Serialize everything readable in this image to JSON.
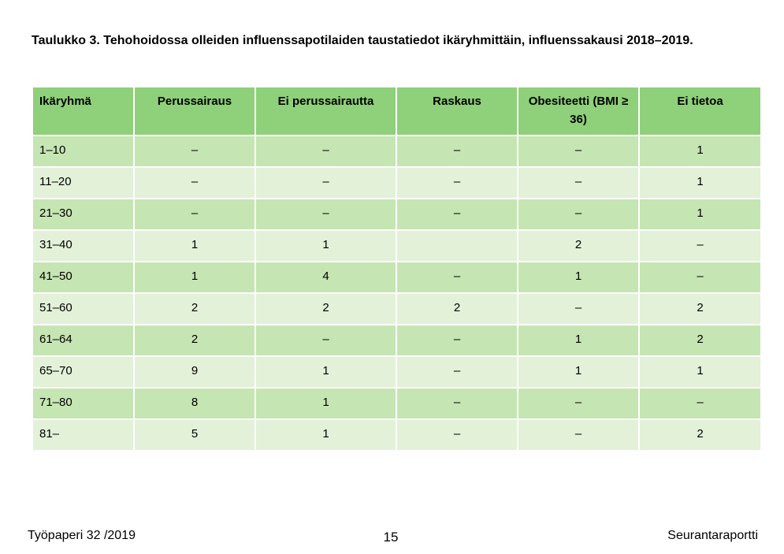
{
  "header": {
    "title": "Taulukko 3. Tehohoidossa olleiden influenssapotilaiden taustatiedot ikäryhmittäin, influenssakausi 2018–2019."
  },
  "table": {
    "columns": [
      "Ikäryhmä",
      "Perussairaus",
      "Ei perussairautta",
      "Raskaus",
      "Obesiteetti (BMI ≥ 36)",
      "Ei tietoa"
    ],
    "rows": [
      [
        "1–10",
        "–",
        "–",
        "–",
        "–",
        "1"
      ],
      [
        "11–20",
        "–",
        "–",
        "–",
        "–",
        "1"
      ],
      [
        "21–30",
        "–",
        "–",
        "–",
        "–",
        "1"
      ],
      [
        "31–40",
        "1",
        "1",
        "",
        "2",
        "–"
      ],
      [
        "41–50",
        "1",
        "4",
        "–",
        "1",
        "–"
      ],
      [
        "51–60",
        "2",
        "2",
        "2",
        "–",
        "2"
      ],
      [
        "61–64",
        "2",
        "–",
        "–",
        "1",
        "2"
      ],
      [
        "65–70",
        "9",
        "1",
        "–",
        "1",
        "1"
      ],
      [
        "71–80",
        "8",
        "1",
        "–",
        "–",
        "–"
      ],
      [
        "81–",
        "5",
        "1",
        "–",
        "–",
        "2"
      ]
    ]
  },
  "footer": {
    "left": "Työpaperi 32 /2019",
    "page": "15",
    "right": "Seurantaraportti"
  }
}
